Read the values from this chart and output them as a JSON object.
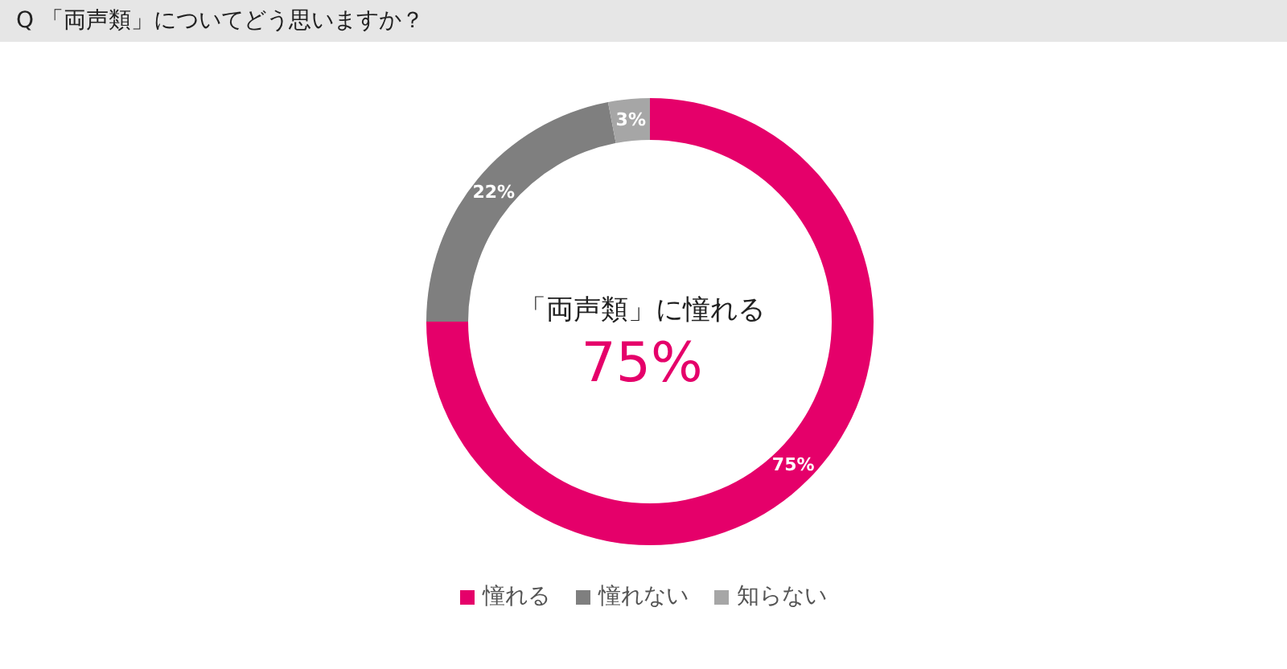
{
  "chart_data": {
    "type": "donut",
    "title": "Q 「両声類」についてどう思いますか？",
    "categories": [
      "憧れる",
      "憧れない",
      "知らない"
    ],
    "values": [
      75,
      22,
      3
    ],
    "colors": [
      "#e5006a",
      "#7f7f7f",
      "#a6a6a6"
    ],
    "value_labels": [
      "75%",
      "22%",
      "3%"
    ],
    "annotations": [
      "「両声類」に憧れる",
      "75%"
    ],
    "legend": "bottom"
  }
}
